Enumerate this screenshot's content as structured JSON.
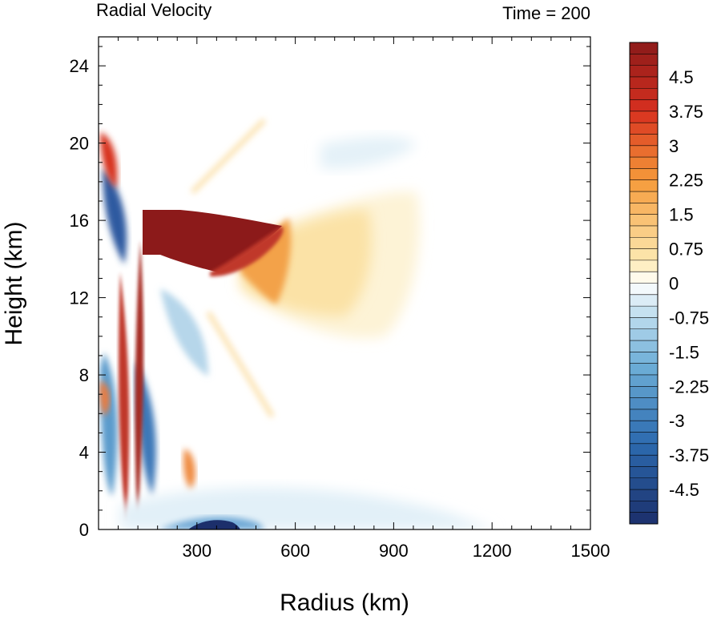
{
  "chart_data": {
    "type": "heatmap",
    "title": "Radial Velocity",
    "title_right": "Time = 200",
    "xlabel": "Radius (km)",
    "ylabel": "Height (km)",
    "xlim": [
      0,
      1500
    ],
    "ylim": [
      0,
      25.5
    ],
    "x_ticks": [
      300,
      600,
      900,
      1200,
      1500
    ],
    "y_ticks": [
      0,
      4,
      8,
      12,
      16,
      20,
      24
    ],
    "grid": false,
    "colorbar": {
      "placement": "right",
      "min": -5.25,
      "max": 5.25,
      "interval": 0.25,
      "labels": [
        "4.5",
        "3.75",
        "3",
        "2.25",
        "1.5",
        "0.75",
        "0",
        "-0.75",
        "-1.5",
        "-2.25",
        "-3",
        "-3.75",
        "-4.5"
      ],
      "label_values": [
        4.5,
        3.75,
        3,
        2.25,
        1.5,
        0.75,
        0,
        -0.75,
        -1.5,
        -2.25,
        -3,
        -3.75,
        -4.5
      ],
      "colors": {
        "max": "#8c1a1a",
        "high": "#d7301f",
        "mid_high": "#f59a3a",
        "low_pos": "#fde9b0",
        "zero": "#ffffff",
        "low_neg": "#cfe6f3",
        "mid_low": "#6fb0d8",
        "low": "#2c6aaf",
        "min": "#1c2f6b"
      }
    },
    "features": [
      {
        "name": "outflow_core",
        "x_range": [
          150,
          500
        ],
        "y_range": [
          13,
          16.2
        ],
        "value": 5.25
      },
      {
        "name": "outflow_tail",
        "x_range": [
          500,
          1000
        ],
        "y_range": [
          10,
          17
        ],
        "value": 1.2
      },
      {
        "name": "boundary_inflow",
        "x_range": [
          100,
          500
        ],
        "y_range": [
          0,
          1.5
        ],
        "value": -3.5
      }
    ]
  }
}
